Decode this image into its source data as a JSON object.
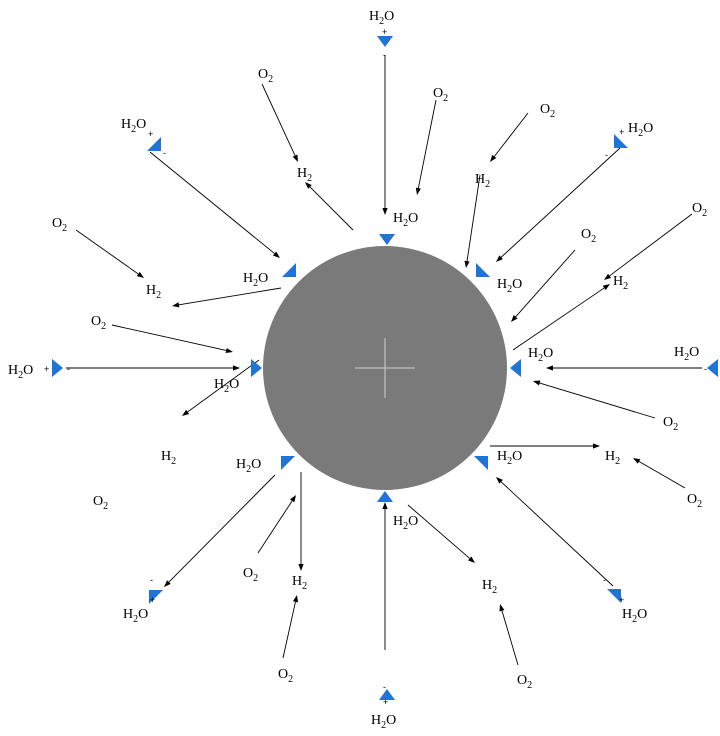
{
  "labels": {
    "water": [
      "H",
      "2",
      "O"
    ],
    "hydrogen": [
      "H",
      "2"
    ],
    "oxygen": [
      "O",
      "2"
    ],
    "plus": "+",
    "minus": "-"
  },
  "colors": {
    "sphere": "#7a7a7a",
    "dipole": "#1f74d6",
    "arrow": "#000000",
    "background": "#ffffff"
  }
}
